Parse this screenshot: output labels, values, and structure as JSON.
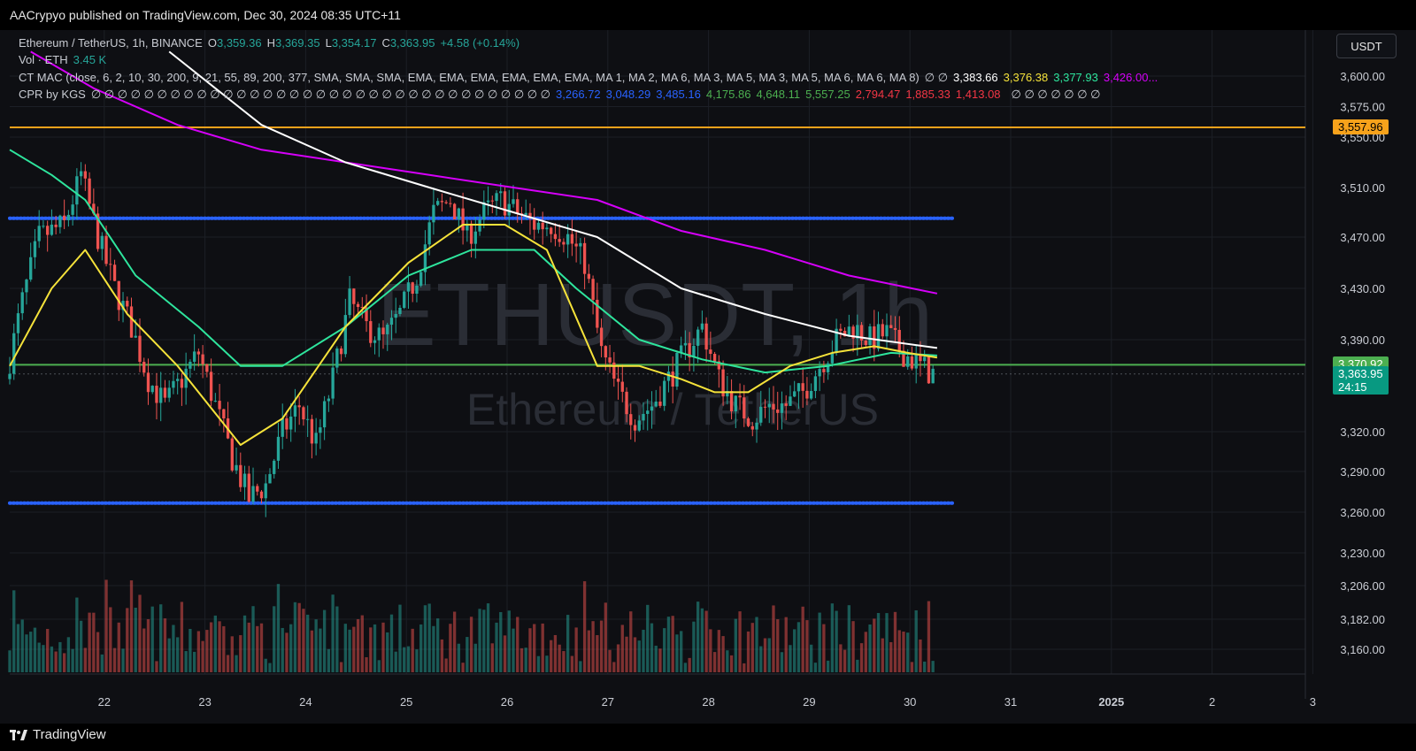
{
  "header": {
    "publisher": "AACrypyo published on TradingView.com, Dec 30, 2024 08:35 UTC+11"
  },
  "footer": {
    "brand": "TradingView"
  },
  "currency_button": "USDT",
  "legend": {
    "symbol": "Ethereum / TetherUS, 1h, BINANCE",
    "open_label": "O",
    "open": "3,359.36",
    "high_label": "H",
    "high": "3,369.35",
    "low_label": "L",
    "low": "3,354.17",
    "close_label": "C",
    "close": "3,363.95",
    "change": "+4.58 (+0.14%)",
    "vol_label": "Vol · ETH",
    "vol_value": "3.45 K",
    "ctmac_label": "CT MAC (close, 6, 2, 10, 30, 200, 9, 21, 55, 89, 200, 377, SMA, SMA, SMA, EMA, EMA, EMA, EMA, EMA, EMA, MA 1, MA 2, MA 6, MA 3, MA 5, MA 3, MA 5, MA 6, MA 6, MA 8)",
    "ctmac_null_glyph": "∅ ∅",
    "ctmac_values": [
      {
        "text": "3,383.66",
        "color": "#ffffff"
      },
      {
        "text": "3,376.38",
        "color": "#f5e23a"
      },
      {
        "text": "3,377.93",
        "color": "#2ee59d"
      },
      {
        "text": "3,426.00...",
        "color": "#d500f9"
      }
    ],
    "cpr_label": "CPR by KGS",
    "cpr_null_glyphs": "∅ ∅ ∅ ∅ ∅ ∅ ∅ ∅ ∅ ∅ ∅ ∅ ∅ ∅ ∅ ∅ ∅ ∅ ∅ ∅ ∅ ∅ ∅ ∅ ∅ ∅ ∅ ∅ ∅ ∅ ∅ ∅ ∅ ∅ ∅",
    "cpr_values": [
      {
        "text": "3,266.72",
        "color": "#2962ff"
      },
      {
        "text": "3,048.29",
        "color": "#2962ff"
      },
      {
        "text": "3,485.16",
        "color": "#2962ff"
      },
      {
        "text": "4,175.86",
        "color": "#4caf50"
      },
      {
        "text": "4,648.11",
        "color": "#4caf50"
      },
      {
        "text": "5,557.25",
        "color": "#4caf50"
      },
      {
        "text": "2,794.47",
        "color": "#f23645"
      },
      {
        "text": "1,885.33",
        "color": "#f23645"
      },
      {
        "text": "1,413.08",
        "color": "#f23645"
      }
    ],
    "cpr_trailing": "∅ ∅ ∅ ∅ ∅ ∅ ∅"
  },
  "watermark": {
    "ticker": "ETHUSDT, 1h",
    "name": "Ethereum / TetherUS"
  },
  "colors": {
    "bull": "#26a69a",
    "bear": "#ef5350",
    "orange": "#f7a21b",
    "blue_dots": "#2962ff",
    "green_level": "#4caf50",
    "ma_white": "#ffffff",
    "ma_yellow": "#f5e23a",
    "ma_green": "#2ee59d",
    "ma_magenta": "#d500f9"
  },
  "price_tags": [
    {
      "label": "3,557.96",
      "price": 3557.96,
      "bg": "#f7a21b",
      "fg": "#000000"
    },
    {
      "label": "3,370.92",
      "price": 3370.92,
      "bg": "#4caf50",
      "fg": "#ffffff"
    },
    {
      "label": "3,363.95",
      "price": 3363.95,
      "bg": "#089981",
      "fg": "#ffffff",
      "sub": "24:15"
    }
  ],
  "chart_data": {
    "type": "candlestick",
    "y_ticks": [
      3600,
      3575,
      3550,
      3510,
      3470,
      3430,
      3390,
      3320,
      3290,
      3260,
      3230,
      3206,
      3182,
      3160
    ],
    "y_tick_labels": [
      "3,600.00",
      "3,575.00",
      "3,550.00",
      "3,510.00",
      "3,470.00",
      "3,430.00",
      "3,390.00",
      "3,320.00",
      "3,290.00",
      "3,260.00",
      "3,230.00",
      "3,206.00",
      "3,182.00",
      "3,160.00"
    ],
    "x_labels": [
      "22",
      "23",
      "24",
      "25",
      "26",
      "27",
      "28",
      "29",
      "30",
      "31",
      "2025",
      "2",
      "3"
    ],
    "x_label_day_offsets": [
      1,
      2,
      3,
      4,
      5,
      6,
      7,
      8,
      9,
      10,
      11,
      12,
      13
    ],
    "x_start": "Dec 21",
    "horizontal_levels": [
      {
        "price": 3557.96,
        "style": "solid",
        "color": "#f7a21b"
      },
      {
        "price": 3485.16,
        "style": "dotted",
        "color": "#2962ff"
      },
      {
        "price": 3370.92,
        "style": "solid",
        "color": "#4caf50"
      },
      {
        "price": 3266.72,
        "style": "dotted",
        "color": "#2962ff"
      },
      {
        "price": 3363.95,
        "style": "dashed",
        "color": "#787b86"
      }
    ],
    "price_path": [
      [
        0,
        3360
      ],
      [
        4,
        3420
      ],
      [
        8,
        3470
      ],
      [
        14,
        3480
      ],
      [
        18,
        3520
      ],
      [
        22,
        3470
      ],
      [
        26,
        3430
      ],
      [
        30,
        3400
      ],
      [
        34,
        3360
      ],
      [
        38,
        3340
      ],
      [
        42,
        3360
      ],
      [
        46,
        3380
      ],
      [
        50,
        3340
      ],
      [
        54,
        3300
      ],
      [
        58,
        3270
      ],
      [
        62,
        3280
      ],
      [
        66,
        3320
      ],
      [
        70,
        3340
      ],
      [
        74,
        3310
      ],
      [
        78,
        3360
      ],
      [
        82,
        3420
      ],
      [
        86,
        3400
      ],
      [
        90,
        3390
      ],
      [
        94,
        3410
      ],
      [
        98,
        3440
      ],
      [
        102,
        3490
      ],
      [
        106,
        3500
      ],
      [
        110,
        3470
      ],
      [
        114,
        3490
      ],
      [
        118,
        3500
      ],
      [
        122,
        3490
      ],
      [
        126,
        3480
      ],
      [
        130,
        3480
      ],
      [
        134,
        3470
      ],
      [
        138,
        3450
      ],
      [
        142,
        3380
      ],
      [
        146,
        3350
      ],
      [
        150,
        3330
      ],
      [
        154,
        3340
      ],
      [
        158,
        3360
      ],
      [
        162,
        3380
      ],
      [
        166,
        3400
      ],
      [
        170,
        3360
      ],
      [
        174,
        3340
      ],
      [
        178,
        3330
      ],
      [
        182,
        3340
      ],
      [
        186,
        3340
      ],
      [
        190,
        3350
      ],
      [
        194,
        3370
      ],
      [
        198,
        3390
      ],
      [
        202,
        3400
      ],
      [
        206,
        3390
      ],
      [
        210,
        3395
      ],
      [
        214,
        3380
      ],
      [
        218,
        3370
      ],
      [
        221,
        3364
      ]
    ],
    "hours_total": 221,
    "ma_white": [
      [
        38,
        3620
      ],
      [
        60,
        3560
      ],
      [
        80,
        3530
      ],
      [
        100,
        3510
      ],
      [
        120,
        3490
      ],
      [
        140,
        3470
      ],
      [
        160,
        3430
      ],
      [
        180,
        3410
      ],
      [
        200,
        3393
      ],
      [
        221,
        3383.66
      ]
    ],
    "ma_magenta": [
      [
        5,
        3620
      ],
      [
        20,
        3590
      ],
      [
        40,
        3560
      ],
      [
        60,
        3540
      ],
      [
        80,
        3530
      ],
      [
        100,
        3520
      ],
      [
        120,
        3510
      ],
      [
        140,
        3500
      ],
      [
        160,
        3475
      ],
      [
        180,
        3460
      ],
      [
        200,
        3440
      ],
      [
        221,
        3426
      ]
    ],
    "ma_green": [
      [
        0,
        3540
      ],
      [
        10,
        3520
      ],
      [
        18,
        3500
      ],
      [
        30,
        3440
      ],
      [
        45,
        3400
      ],
      [
        55,
        3370
      ],
      [
        65,
        3370
      ],
      [
        80,
        3400
      ],
      [
        95,
        3440
      ],
      [
        110,
        3460
      ],
      [
        125,
        3460
      ],
      [
        135,
        3430
      ],
      [
        150,
        3390
      ],
      [
        165,
        3375
      ],
      [
        180,
        3365
      ],
      [
        195,
        3370
      ],
      [
        210,
        3380
      ],
      [
        221,
        3377.93
      ]
    ],
    "ma_yellow": [
      [
        0,
        3370
      ],
      [
        10,
        3430
      ],
      [
        18,
        3460
      ],
      [
        28,
        3410
      ],
      [
        40,
        3370
      ],
      [
        55,
        3310
      ],
      [
        65,
        3330
      ],
      [
        80,
        3400
      ],
      [
        95,
        3450
      ],
      [
        108,
        3480
      ],
      [
        118,
        3480
      ],
      [
        128,
        3460
      ],
      [
        140,
        3370
      ],
      [
        150,
        3370
      ],
      [
        160,
        3360
      ],
      [
        168,
        3350
      ],
      [
        176,
        3350
      ],
      [
        186,
        3370
      ],
      [
        196,
        3380
      ],
      [
        206,
        3385
      ],
      [
        214,
        3380
      ],
      [
        221,
        3376.38
      ]
    ]
  }
}
